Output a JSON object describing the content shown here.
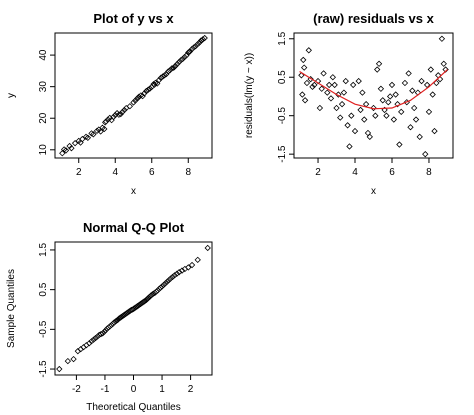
{
  "chart_data": [
    {
      "type": "scatter",
      "title": "Plot of y vs x",
      "xlabel": "x",
      "ylabel": "y",
      "xlim": [
        0.7,
        9.3
      ],
      "ylim": [
        7.4,
        47.0
      ],
      "xticks": [
        2,
        4,
        6,
        8
      ],
      "yticks": [
        10,
        20,
        30,
        40
      ],
      "grid": false,
      "points": [
        [
          1.1,
          8.9
        ],
        [
          1.2,
          10.1
        ],
        [
          1.3,
          9.8
        ],
        [
          1.5,
          11.2
        ],
        [
          1.6,
          10.5
        ],
        [
          1.8,
          12.1
        ],
        [
          2.0,
          12.8
        ],
        [
          2.2,
          13.4
        ],
        [
          2.4,
          14.1
        ],
        [
          2.5,
          13.8
        ],
        [
          2.7,
          15.2
        ],
        [
          2.8,
          14.9
        ],
        [
          3.0,
          16.0
        ],
        [
          3.1,
          16.4
        ],
        [
          3.2,
          15.8
        ],
        [
          3.3,
          17.0
        ],
        [
          3.4,
          16.6
        ],
        [
          3.5,
          19.0
        ],
        [
          3.6,
          19.6
        ],
        [
          3.7,
          20.1
        ],
        [
          3.8,
          19.4
        ],
        [
          3.9,
          20.4
        ],
        [
          4.0,
          21.0
        ],
        [
          4.1,
          21.6
        ],
        [
          4.2,
          21.1
        ],
        [
          4.4,
          22.0
        ],
        [
          4.5,
          22.6
        ],
        [
          4.6,
          23.2
        ],
        [
          4.8,
          23.8
        ],
        [
          5.0,
          25.0
        ],
        [
          5.1,
          25.6
        ],
        [
          5.2,
          26.2
        ],
        [
          5.3,
          26.8
        ],
        [
          5.4,
          27.2
        ],
        [
          5.5,
          27.0
        ],
        [
          5.6,
          27.9
        ],
        [
          5.7,
          28.6
        ],
        [
          5.8,
          29.0
        ],
        [
          5.9,
          29.4
        ],
        [
          6.0,
          29.9
        ],
        [
          6.1,
          30.8
        ],
        [
          6.2,
          31.2
        ],
        [
          6.3,
          31.0
        ],
        [
          6.4,
          32.1
        ],
        [
          6.5,
          32.8
        ],
        [
          6.6,
          33.2
        ],
        [
          6.7,
          33.6
        ],
        [
          6.8,
          34.0
        ],
        [
          6.9,
          34.8
        ],
        [
          7.0,
          35.2
        ],
        [
          7.1,
          35.8
        ],
        [
          7.2,
          36.0
        ],
        [
          7.3,
          36.6
        ],
        [
          7.4,
          37.2
        ],
        [
          7.5,
          37.8
        ],
        [
          7.6,
          38.4
        ],
        [
          7.7,
          38.8
        ],
        [
          7.8,
          39.4
        ],
        [
          7.9,
          39.9
        ],
        [
          8.0,
          40.8
        ],
        [
          8.1,
          41.2
        ],
        [
          8.2,
          41.9
        ],
        [
          8.3,
          42.4
        ],
        [
          8.4,
          42.8
        ],
        [
          8.5,
          43.4
        ],
        [
          8.6,
          43.9
        ],
        [
          8.7,
          44.6
        ],
        [
          8.8,
          45.0
        ],
        [
          8.9,
          45.4
        ],
        [
          2.1,
          12.3
        ],
        [
          3.45,
          18.7
        ],
        [
          4.3,
          21.3
        ],
        [
          5.25,
          26.5
        ],
        [
          6.15,
          30.6
        ],
        [
          7.25,
          36.3
        ],
        [
          8.05,
          41.0
        ],
        [
          8.65,
          44.2
        ]
      ]
    },
    {
      "type": "scatter",
      "title": "(raw) residuals vs x",
      "xlabel": "x",
      "ylabel": "residuals(lm(y ~ x))",
      "xlim": [
        0.7,
        9.3
      ],
      "ylim": [
        -1.6,
        1.65
      ],
      "xticks": [
        2,
        4,
        6,
        8
      ],
      "yticks": [
        -1.5,
        -0.5,
        0.5,
        1.5
      ],
      "grid": false,
      "curve_color": "#e02020",
      "points": [
        [
          1.1,
          0.55
        ],
        [
          1.15,
          0.05
        ],
        [
          1.2,
          0.95
        ],
        [
          1.25,
          0.75
        ],
        [
          1.3,
          -0.1
        ],
        [
          1.4,
          0.35
        ],
        [
          1.5,
          1.2
        ],
        [
          1.6,
          0.45
        ],
        [
          1.7,
          0.25
        ],
        [
          1.8,
          0.3
        ],
        [
          2.0,
          0.4
        ],
        [
          2.1,
          -0.3
        ],
        [
          2.2,
          0.2
        ],
        [
          2.3,
          0.6
        ],
        [
          2.5,
          0.1
        ],
        [
          2.6,
          0.3
        ],
        [
          2.7,
          -0.05
        ],
        [
          2.8,
          0.5
        ],
        [
          2.9,
          0.3
        ],
        [
          3.0,
          -0.3
        ],
        [
          3.1,
          0.05
        ],
        [
          3.2,
          -0.55
        ],
        [
          3.3,
          -0.2
        ],
        [
          3.4,
          0.1
        ],
        [
          3.5,
          0.4
        ],
        [
          3.6,
          -0.75
        ],
        [
          3.7,
          -1.3
        ],
        [
          3.8,
          -0.5
        ],
        [
          3.9,
          0.3
        ],
        [
          4.0,
          -0.9
        ],
        [
          4.2,
          0.4
        ],
        [
          4.3,
          -0.35
        ],
        [
          4.5,
          -0.6
        ],
        [
          4.6,
          -0.2
        ],
        [
          4.7,
          -0.95
        ],
        [
          4.8,
          -1.05
        ],
        [
          5.0,
          -0.3
        ],
        [
          5.1,
          -0.5
        ],
        [
          5.2,
          0.7
        ],
        [
          5.3,
          0.85
        ],
        [
          5.4,
          0.2
        ],
        [
          5.5,
          -0.1
        ],
        [
          5.6,
          -0.35
        ],
        [
          5.7,
          -0.5
        ],
        [
          5.8,
          -0.15
        ],
        [
          6.0,
          0.3
        ],
        [
          6.1,
          -0.6
        ],
        [
          6.2,
          0.05
        ],
        [
          6.3,
          -0.2
        ],
        [
          6.4,
          -1.25
        ],
        [
          6.5,
          -0.4
        ],
        [
          6.7,
          0.35
        ],
        [
          6.8,
          -0.15
        ],
        [
          6.9,
          0.6
        ],
        [
          7.0,
          -0.8
        ],
        [
          7.1,
          0.15
        ],
        [
          7.2,
          -0.3
        ],
        [
          7.3,
          -0.6
        ],
        [
          7.4,
          0.1
        ],
        [
          7.5,
          -1.05
        ],
        [
          7.6,
          0.4
        ],
        [
          7.8,
          -1.5
        ],
        [
          7.9,
          0.3
        ],
        [
          8.0,
          -0.4
        ],
        [
          8.1,
          0.7
        ],
        [
          8.2,
          0.05
        ],
        [
          8.3,
          -0.9
        ],
        [
          8.4,
          0.35
        ],
        [
          8.5,
          0.55
        ],
        [
          8.6,
          0.45
        ],
        [
          8.7,
          1.5
        ],
        [
          8.8,
          0.85
        ],
        [
          8.9,
          0.7
        ],
        [
          5.9,
          0.0
        ],
        [
          4.4,
          0.1
        ]
      ],
      "curve": [
        [
          1.0,
          0.65
        ],
        [
          2.0,
          0.35
        ],
        [
          3.0,
          0.05
        ],
        [
          4.0,
          -0.2
        ],
        [
          5.0,
          -0.32
        ],
        [
          6.0,
          -0.3
        ],
        [
          7.0,
          -0.1
        ],
        [
          8.0,
          0.25
        ],
        [
          9.0,
          0.7
        ]
      ]
    },
    {
      "type": "scatter",
      "title": "Normal Q-Q Plot",
      "xlabel": "Theoretical Quantiles",
      "ylabel": "Sample Quantiles",
      "xlim": [
        -2.75,
        2.75
      ],
      "ylim": [
        -1.65,
        1.7
      ],
      "xticks": [
        -2,
        -1,
        0,
        1,
        2
      ],
      "yticks": [
        -1.5,
        -0.5,
        0.5,
        1.5
      ],
      "grid": false,
      "points": [
        [
          -2.6,
          -1.5
        ],
        [
          -2.3,
          -1.3
        ],
        [
          -2.1,
          -1.25
        ],
        [
          -1.95,
          -1.05
        ],
        [
          -1.85,
          -1.0
        ],
        [
          -1.75,
          -0.95
        ],
        [
          -1.65,
          -0.9
        ],
        [
          -1.55,
          -0.85
        ],
        [
          -1.47,
          -0.8
        ],
        [
          -1.4,
          -0.76
        ],
        [
          -1.33,
          -0.72
        ],
        [
          -1.26,
          -0.68
        ],
        [
          -1.2,
          -0.64
        ],
        [
          -1.14,
          -0.62
        ],
        [
          -1.08,
          -0.6
        ],
        [
          -1.02,
          -0.56
        ],
        [
          -0.97,
          -0.52
        ],
        [
          -0.92,
          -0.48
        ],
        [
          -0.87,
          -0.45
        ],
        [
          -0.82,
          -0.42
        ],
        [
          -0.77,
          -0.39
        ],
        [
          -0.72,
          -0.36
        ],
        [
          -0.68,
          -0.33
        ],
        [
          -0.63,
          -0.3
        ],
        [
          -0.59,
          -0.28
        ],
        [
          -0.55,
          -0.26
        ],
        [
          -0.51,
          -0.23
        ],
        [
          -0.47,
          -0.21
        ],
        [
          -0.43,
          -0.19
        ],
        [
          -0.39,
          -0.17
        ],
        [
          -0.35,
          -0.15
        ],
        [
          -0.31,
          -0.13
        ],
        [
          -0.27,
          -0.11
        ],
        [
          -0.23,
          -0.09
        ],
        [
          -0.19,
          -0.07
        ],
        [
          -0.15,
          -0.05
        ],
        [
          -0.11,
          -0.03
        ],
        [
          -0.07,
          -0.01
        ],
        [
          -0.03,
          0.0
        ],
        [
          0.01,
          0.02
        ],
        [
          0.05,
          0.04
        ],
        [
          0.09,
          0.06
        ],
        [
          0.13,
          0.08
        ],
        [
          0.17,
          0.1
        ],
        [
          0.21,
          0.12
        ],
        [
          0.25,
          0.14
        ],
        [
          0.29,
          0.16
        ],
        [
          0.33,
          0.18
        ],
        [
          0.37,
          0.2
        ],
        [
          0.41,
          0.22
        ],
        [
          0.45,
          0.24
        ],
        [
          0.49,
          0.27
        ],
        [
          0.53,
          0.3
        ],
        [
          0.57,
          0.32
        ],
        [
          0.61,
          0.35
        ],
        [
          0.66,
          0.38
        ],
        [
          0.7,
          0.4
        ],
        [
          0.75,
          0.42
        ],
        [
          0.8,
          0.45
        ],
        [
          0.85,
          0.48
        ],
        [
          0.9,
          0.52
        ],
        [
          0.95,
          0.55
        ],
        [
          1.0,
          0.58
        ],
        [
          1.06,
          0.62
        ],
        [
          1.12,
          0.66
        ],
        [
          1.18,
          0.7
        ],
        [
          1.24,
          0.74
        ],
        [
          1.3,
          0.78
        ],
        [
          1.37,
          0.82
        ],
        [
          1.44,
          0.86
        ],
        [
          1.52,
          0.9
        ],
        [
          1.6,
          0.94
        ],
        [
          1.7,
          0.98
        ],
        [
          1.8,
          1.02
        ],
        [
          1.92,
          1.06
        ],
        [
          2.05,
          1.12
        ],
        [
          2.25,
          1.25
        ],
        [
          2.6,
          1.55
        ]
      ]
    }
  ]
}
